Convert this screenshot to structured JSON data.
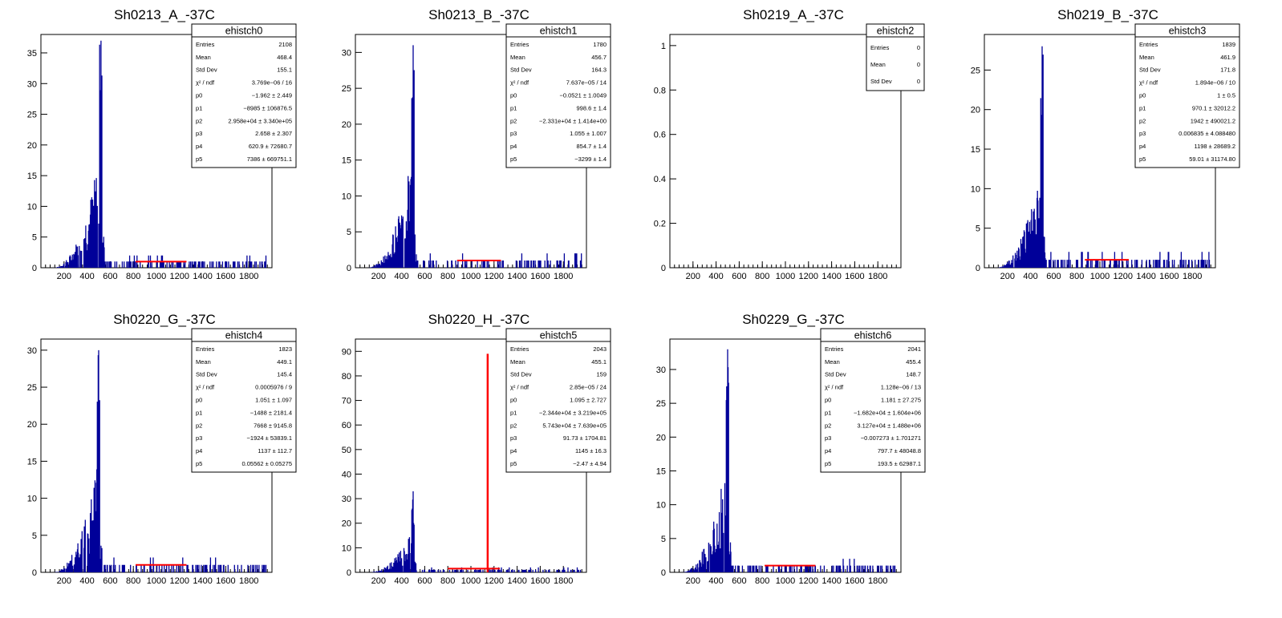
{
  "canvas": {
    "name": "ehistch canvas"
  },
  "chart_data": [
    {
      "type": "histogram",
      "title": "Sh0213_A_-37C",
      "ylim": [
        0,
        38
      ],
      "xlim": [
        0,
        2000
      ],
      "xticks": [
        "200",
        "400",
        "600",
        "800",
        "1000",
        "1200",
        "1400",
        "1600",
        "1800"
      ],
      "yticks": [
        "0",
        "5",
        "10",
        "15",
        "20",
        "25",
        "30",
        "35"
      ],
      "ytick_values": [
        0,
        5,
        10,
        15,
        20,
        25,
        30,
        35
      ],
      "peak": {
        "x": 520,
        "height": 37
      },
      "fit_line": {
        "x": [
          820,
          1260
        ],
        "y": 1.0
      },
      "stats": {
        "name": "ehistch0",
        "rows": [
          [
            "Entries",
            "2108"
          ],
          [
            "Mean",
            "468.4"
          ],
          [
            "Std Dev",
            "155.1"
          ],
          [
            "χ² / ndf",
            "3.769e−06 / 16"
          ],
          [
            "p0",
            "−1.962 ± 2.449"
          ],
          [
            "p1",
            "−8985 ± 106876.5"
          ],
          [
            "p2",
            "2.958e+04 ± 3.340e+05"
          ],
          [
            "p3",
            "2.658 ± 2.307"
          ],
          [
            "p4",
            "620.9 ± 72680.7"
          ],
          [
            "p5",
            "7386 ± 669751.1"
          ]
        ]
      }
    },
    {
      "type": "histogram",
      "title": "Sh0213_B_-37C",
      "ylim": [
        0,
        32.5
      ],
      "xlim": [
        0,
        2000
      ],
      "xticks": [
        "200",
        "400",
        "600",
        "800",
        "1000",
        "1200",
        "1400",
        "1600",
        "1800"
      ],
      "yticks": [
        "0",
        "5",
        "10",
        "15",
        "20",
        "25",
        "30"
      ],
      "ytick_values": [
        0,
        5,
        10,
        15,
        20,
        25,
        30
      ],
      "peak": {
        "x": 500,
        "height": 31
      },
      "fit_line": {
        "x": [
          880,
          1260
        ],
        "y": 1.0
      },
      "stats": {
        "name": "ehistch1",
        "rows": [
          [
            "Entries",
            "1780"
          ],
          [
            "Mean",
            "456.7"
          ],
          [
            "Std Dev",
            "164.3"
          ],
          [
            "χ² / ndf",
            "7.637e−05 / 14"
          ],
          [
            "p0",
            "−0.0521 ± 1.0049"
          ],
          [
            "p1",
            "998.6 ± 1.4"
          ],
          [
            "p2",
            "−2.331e+04 ± 1.414e+00"
          ],
          [
            "p3",
            "1.055 ± 1.007"
          ],
          [
            "p4",
            "854.7 ± 1.4"
          ],
          [
            "p5",
            "−3299 ± 1.4"
          ]
        ]
      }
    },
    {
      "type": "histogram",
      "title": "Sh0219_A_-37C",
      "ylim": [
        0,
        1.05
      ],
      "xlim": [
        0,
        2000
      ],
      "xticks": [
        "200",
        "400",
        "600",
        "800",
        "1000",
        "1200",
        "1400",
        "1600",
        "1800"
      ],
      "yticks": [
        "0",
        "0.2",
        "0.4",
        "0.6",
        "0.8",
        "1"
      ],
      "ytick_values": [
        0,
        0.2,
        0.4,
        0.6,
        0.8,
        1
      ],
      "empty": true,
      "stats": {
        "name": "ehistch2",
        "rows": [
          [
            "Entries",
            "0"
          ],
          [
            "Mean",
            "0"
          ],
          [
            "Std Dev",
            "0"
          ]
        ]
      }
    },
    {
      "type": "histogram",
      "title": "Sh0219_B_-37C",
      "ylim": [
        0,
        29.5
      ],
      "xlim": [
        0,
        2000
      ],
      "xticks": [
        "200",
        "400",
        "600",
        "800",
        "1000",
        "1200",
        "1400",
        "1600",
        "1800"
      ],
      "yticks": [
        "0",
        "5",
        "10",
        "15",
        "20",
        "25"
      ],
      "ytick_values": [
        0,
        5,
        10,
        15,
        20,
        25
      ],
      "peak": {
        "x": 500,
        "height": 28
      },
      "fit_line": {
        "x": [
          870,
          1250
        ],
        "y": 1.0
      },
      "stats": {
        "name": "ehistch3",
        "rows": [
          [
            "Entries",
            "1839"
          ],
          [
            "Mean",
            "461.9"
          ],
          [
            "Std Dev",
            "171.8"
          ],
          [
            "χ² / ndf",
            "1.894e−06 / 10"
          ],
          [
            "p0",
            "1 ± 0.5"
          ],
          [
            "p1",
            "970.1 ± 32012.2"
          ],
          [
            "p2",
            "1942 ± 490021.2"
          ],
          [
            "p3",
            "0.006835 ± 4.088480"
          ],
          [
            "p4",
            "1198 ± 28689.2"
          ],
          [
            "p5",
            "59.01 ± 31174.80"
          ]
        ]
      }
    },
    {
      "type": "histogram",
      "title": "Sh0220_G_-37C",
      "ylim": [
        0,
        31.5
      ],
      "xlim": [
        0,
        2000
      ],
      "xticks": [
        "200",
        "400",
        "600",
        "800",
        "1000",
        "1200",
        "1400",
        "1600",
        "1800"
      ],
      "yticks": [
        "0",
        "5",
        "10",
        "15",
        "20",
        "25",
        "30"
      ],
      "ytick_values": [
        0,
        5,
        10,
        15,
        20,
        25,
        30
      ],
      "peak": {
        "x": 500,
        "height": 30
      },
      "fit_line": {
        "x": [
          820,
          1260
        ],
        "y": 1.0
      },
      "stats": {
        "name": "ehistch4",
        "rows": [
          [
            "Entries",
            "1823"
          ],
          [
            "Mean",
            "449.1"
          ],
          [
            "Std Dev",
            "145.4"
          ],
          [
            "χ² / ndf",
            "0.0005976 / 9"
          ],
          [
            "p0",
            "1.051 ± 1.097"
          ],
          [
            "p1",
            "−1488 ± 2181.4"
          ],
          [
            "p2",
            "7668 ± 9145.8"
          ],
          [
            "p3",
            "−1924 ± 53839.1"
          ],
          [
            "p4",
            "1137 ± 112.7"
          ],
          [
            "p5",
            "0.05562 ± 0.05275"
          ]
        ]
      }
    },
    {
      "type": "histogram",
      "title": "Sh0220_H_-37C",
      "ylim": [
        0,
        95
      ],
      "xlim": [
        0,
        2000
      ],
      "xticks": [
        "200",
        "400",
        "600",
        "800",
        "1000",
        "1200",
        "1400",
        "1600",
        "1800"
      ],
      "yticks": [
        "0",
        "10",
        "20",
        "30",
        "40",
        "50",
        "60",
        "70",
        "80",
        "90"
      ],
      "ytick_values": [
        0,
        10,
        20,
        30,
        40,
        50,
        60,
        70,
        80,
        90
      ],
      "peak": {
        "x": 500,
        "height": 33
      },
      "fit_line": {
        "x": [
          800,
          1250
        ],
        "y": 1.5
      },
      "fit_spike": {
        "x": 1145,
        "height": 89
      },
      "stats": {
        "name": "ehistch5",
        "rows": [
          [
            "Entries",
            "2043"
          ],
          [
            "Mean",
            "455.1"
          ],
          [
            "Std Dev",
            "159"
          ],
          [
            "χ² / ndf",
            "2.85e−05 / 24"
          ],
          [
            "p0",
            "1.095 ± 2.727"
          ],
          [
            "p1",
            "−2.344e+04 ± 3.219e+05"
          ],
          [
            "p2",
            "5.743e+04 ± 7.639e+05"
          ],
          [
            "p3",
            "91.73 ± 1704.81"
          ],
          [
            "p4",
            "1145 ± 16.3"
          ],
          [
            "p5",
            "−2.47 ± 4.94"
          ]
        ]
      }
    },
    {
      "type": "histogram",
      "title": "Sh0229_G_-37C",
      "ylim": [
        0,
        34.5
      ],
      "xlim": [
        0,
        2000
      ],
      "xticks": [
        "200",
        "400",
        "600",
        "800",
        "1000",
        "1200",
        "1400",
        "1600",
        "1800"
      ],
      "yticks": [
        "0",
        "5",
        "10",
        "15",
        "20",
        "25",
        "30"
      ],
      "ytick_values": [
        0,
        5,
        10,
        15,
        20,
        25,
        30
      ],
      "peak": {
        "x": 500,
        "height": 33
      },
      "fit_line": {
        "x": [
          820,
          1260
        ],
        "y": 1.0
      },
      "stats": {
        "name": "ehistch6",
        "rows": [
          [
            "Entries",
            "2041"
          ],
          [
            "Mean",
            "455.4"
          ],
          [
            "Std Dev",
            "148.7"
          ],
          [
            "χ² / ndf",
            "1.128e−06 / 13"
          ],
          [
            "p0",
            "1.181 ± 27.275"
          ],
          [
            "p1",
            "−1.682e+04 ± 1.604e+06"
          ],
          [
            "p2",
            "3.127e+04 ± 1.488e+06"
          ],
          [
            "p3",
            "−0.007273 ± 1.701271"
          ],
          [
            "p4",
            "797.7 ± 48048.8"
          ],
          [
            "p5",
            "193.5 ± 62987.1"
          ]
        ]
      }
    }
  ],
  "colors": {
    "histogram": "#000099",
    "fit": "#ff0000",
    "axis": "#000000"
  }
}
